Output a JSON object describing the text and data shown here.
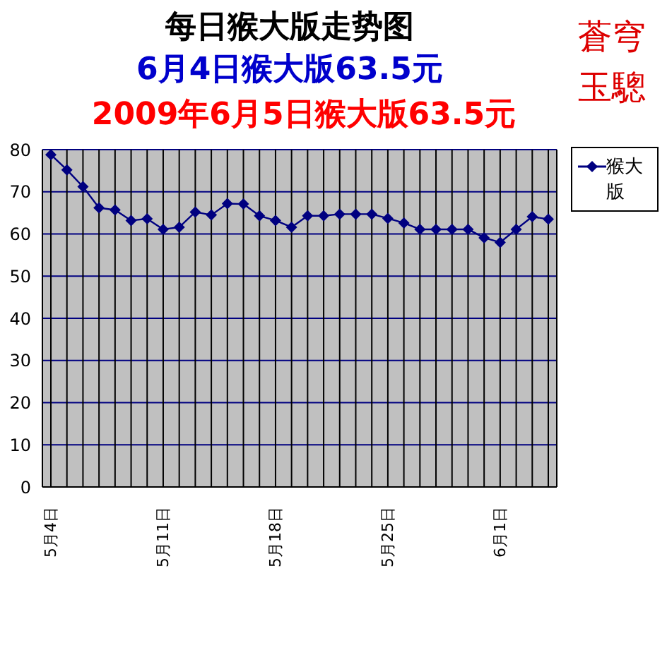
{
  "chart_data": {
    "type": "line",
    "title": "每日猴大版走势图",
    "subtitle": "6月4日猴大版63.5元",
    "annotations": [
      "2009年6月5日猴大版63.5元",
      "蒼穹玉驄"
    ],
    "categories": [
      "5月4日",
      null,
      null,
      null,
      null,
      null,
      null,
      "5月11日",
      null,
      null,
      null,
      null,
      null,
      null,
      "5月18日",
      null,
      null,
      null,
      null,
      null,
      null,
      "5月25日",
      null,
      null,
      null,
      null,
      null,
      null,
      "6月1日",
      null,
      null,
      null
    ],
    "series": [
      {
        "name": "猴大版",
        "color": "#000080",
        "values": [
          78.8,
          75.2,
          71.2,
          66.2,
          65.7,
          63.2,
          63.6,
          61.1,
          61.6,
          65.2,
          64.5,
          67.2,
          67.1,
          64.3,
          63.2,
          61.6,
          64.3,
          64.3,
          64.7,
          64.7,
          64.7,
          63.7,
          62.6,
          61.1,
          61.1,
          61.1,
          61.1,
          59.1,
          58.0,
          61.1,
          64.1,
          63.5
        ]
      }
    ],
    "ylim": [
      0,
      80
    ],
    "yticks": [
      0,
      10,
      20,
      30,
      40,
      50,
      60,
      70,
      80
    ],
    "grid": true,
    "legend": "top right",
    "marker": "diamond",
    "line_style": "solid"
  }
}
